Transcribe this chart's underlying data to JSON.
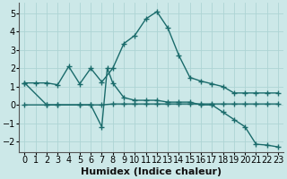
{
  "title": "",
  "xlabel": "Humidex (Indice chaleur)",
  "bg_color": "#cce8e8",
  "line_color": "#1a6b6b",
  "xlim": [
    -0.5,
    23.5
  ],
  "ylim": [
    -2.6,
    5.6
  ],
  "xticks": [
    0,
    1,
    2,
    3,
    4,
    5,
    6,
    7,
    8,
    9,
    10,
    11,
    12,
    13,
    14,
    15,
    16,
    17,
    18,
    19,
    20,
    21,
    22,
    23
  ],
  "yticks": [
    -2,
    -1,
    0,
    1,
    2,
    3,
    4,
    5
  ],
  "series": [
    {
      "x": [
        0,
        1,
        2,
        3,
        4,
        5,
        6,
        7,
        8,
        9,
        10,
        11,
        12,
        13,
        14,
        15,
        16,
        17,
        18,
        19,
        20,
        21,
        22,
        23
      ],
      "y": [
        1.2,
        1.2,
        1.2,
        1.1,
        2.1,
        1.15,
        2.0,
        1.25,
        2.0,
        3.35,
        3.8,
        4.7,
        5.1,
        4.2,
        2.7,
        1.5,
        1.3,
        1.15,
        1.0,
        0.65,
        0.65,
        0.65,
        0.65,
        0.65
      ]
    },
    {
      "x": [
        0,
        2,
        3,
        5,
        6,
        7,
        8,
        9,
        10,
        11,
        12,
        13,
        14,
        15,
        16,
        17,
        18,
        19,
        20,
        21,
        22,
        23
      ],
      "y": [
        1.2,
        0.0,
        0.0,
        0.0,
        0.0,
        0.0,
        0.05,
        0.05,
        0.05,
        0.05,
        0.05,
        0.05,
        0.05,
        0.05,
        0.05,
        0.05,
        0.05,
        0.05,
        0.05,
        0.05,
        0.05,
        0.05
      ]
    },
    {
      "x": [
        0,
        2,
        3,
        5,
        6,
        7,
        7.5,
        8,
        9,
        10,
        11,
        12,
        13,
        14,
        15,
        16,
        17,
        18,
        19,
        20,
        21,
        22,
        23
      ],
      "y": [
        0.0,
        0.0,
        0.0,
        0.0,
        0.0,
        -1.2,
        2.0,
        1.2,
        0.4,
        0.25,
        0.25,
        0.25,
        0.15,
        0.15,
        0.15,
        0.0,
        0.0,
        -0.4,
        -0.8,
        -1.2,
        -2.15,
        -2.2,
        -2.3
      ]
    }
  ],
  "grid_color": "#aed4d4",
  "axis_fontsize": 8,
  "tick_fontsize": 7
}
